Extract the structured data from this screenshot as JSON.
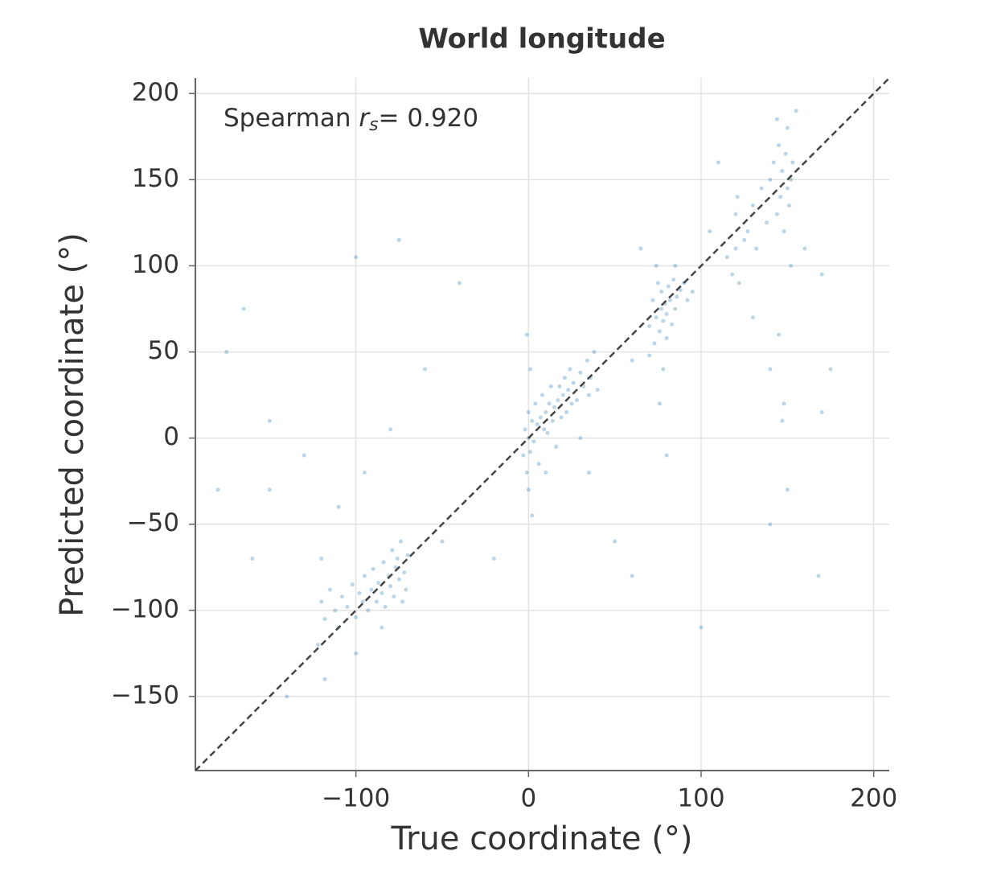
{
  "chart_data": {
    "type": "scatter",
    "title": "World longitude",
    "xlabel": "True coordinate (°)",
    "ylabel": "Predicted coordinate (°)",
    "annotation": {
      "prefix": "Spearman",
      "symbol": "r",
      "subscript": "s",
      "suffix": "= 0.920"
    },
    "identity_line": true,
    "grid": true,
    "xlim": [
      -193,
      209
    ],
    "ylim": [
      -193,
      209
    ],
    "xticks": [
      {
        "value": -100,
        "label": "−100"
      },
      0,
      100,
      200
    ],
    "yticks": [
      {
        "value": -150,
        "label": "−150"
      },
      {
        "value": -100,
        "label": "−100"
      },
      {
        "value": -50,
        "label": "−50"
      },
      0,
      50,
      100,
      150,
      200
    ],
    "series": [
      {
        "color": "#1f77b4",
        "x": [
          -122,
          -120,
          -118,
          -115,
          -112,
          -110,
          -108,
          -105,
          -102,
          -100,
          -98,
          -96,
          -95,
          -93,
          -91,
          -90,
          -88,
          -87,
          -85,
          -84,
          -83,
          -81,
          -80,
          -79,
          -78,
          -77,
          -76,
          -75,
          -74,
          -73,
          -72,
          -71,
          -70,
          -120,
          -118,
          -110,
          -95,
          -80,
          -85,
          -100,
          -3,
          -2,
          -1,
          0,
          0,
          0,
          1,
          1,
          2,
          3,
          4,
          5,
          6,
          7,
          8,
          9,
          10,
          11,
          12,
          13,
          14,
          15,
          16,
          17,
          18,
          19,
          20,
          21,
          22,
          23,
          24,
          25,
          26,
          28,
          30,
          32,
          34,
          35,
          36,
          38,
          40,
          -1,
          2,
          10,
          30,
          70,
          72,
          73,
          74,
          75,
          76,
          77,
          77,
          78,
          79,
          80,
          80,
          81,
          82,
          83,
          84,
          85,
          86,
          88,
          90,
          78,
          76,
          80,
          85,
          74,
          92,
          95,
          70,
          65,
          60,
          115,
          118,
          120,
          120,
          121,
          122,
          125,
          127,
          130,
          132,
          135,
          138,
          140,
          142,
          144,
          145,
          146,
          147,
          148,
          149,
          150,
          150,
          151,
          152,
          152,
          153,
          145,
          148,
          150,
          147,
          140,
          130,
          155,
          144,
          110,
          105,
          160,
          170,
          175,
          168,
          -180,
          -175,
          -165,
          -160,
          -150,
          -140,
          -130,
          -100,
          -75,
          -60,
          -40,
          -20,
          50,
          60,
          100,
          140,
          170,
          -50,
          -150,
          35
        ],
        "values": [
          -120,
          -95,
          -105,
          -88,
          -100,
          -110,
          -92,
          -98,
          -85,
          -104,
          -90,
          -95,
          -80,
          -100,
          -88,
          -76,
          -95,
          -84,
          -90,
          -72,
          -98,
          -80,
          -86,
          -65,
          -92,
          -75,
          -70,
          -82,
          -60,
          -95,
          -78,
          -88,
          -68,
          -70,
          -140,
          -40,
          -20,
          5,
          -110,
          -125,
          -10,
          5,
          -20,
          0,
          -30,
          15,
          -8,
          40,
          10,
          -2,
          20,
          8,
          -15,
          12,
          25,
          5,
          15,
          3,
          20,
          30,
          10,
          18,
          -5,
          22,
          30,
          12,
          25,
          35,
          15,
          28,
          40,
          20,
          32,
          22,
          38,
          30,
          45,
          25,
          35,
          50,
          28,
          60,
          -45,
          -20,
          0,
          65,
          80,
          55,
          70,
          90,
          62,
          75,
          85,
          68,
          78,
          72,
          58,
          88,
          80,
          66,
          92,
          75,
          82,
          86,
          90,
          40,
          20,
          -10,
          100,
          100,
          80,
          85,
          48,
          110,
          45,
          105,
          95,
          130,
          110,
          140,
          90,
          115,
          120,
          135,
          110,
          145,
          125,
          150,
          160,
          130,
          170,
          140,
          155,
          120,
          165,
          145,
          180,
          135,
          150,
          100,
          160,
          60,
          20,
          -30,
          10,
          40,
          70,
          190,
          185,
          160,
          120,
          110,
          95,
          40,
          -80,
          -30,
          50,
          75,
          -70,
          -30,
          -150,
          -10,
          105,
          115,
          40,
          90,
          -70,
          -60,
          -80,
          -110,
          -50,
          15,
          -60,
          10,
          -20
        ]
      }
    ]
  }
}
